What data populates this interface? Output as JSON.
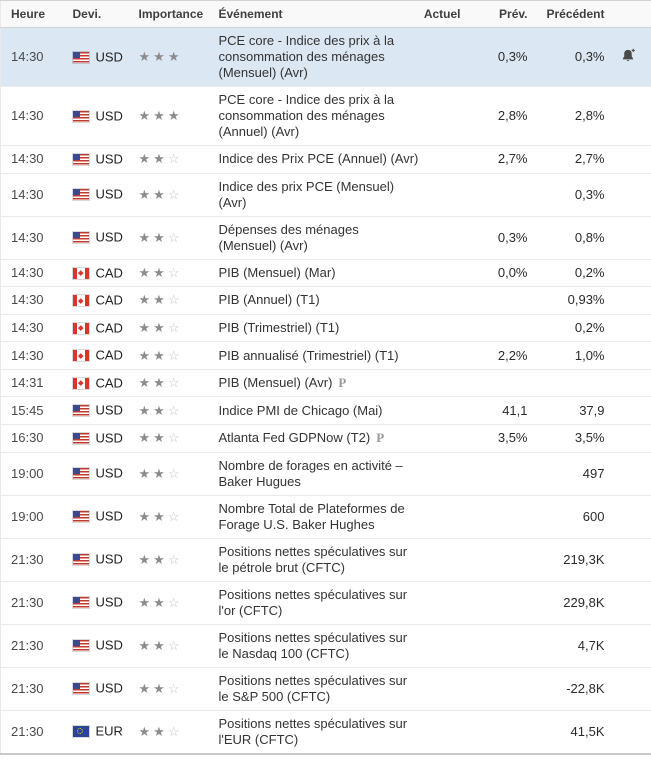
{
  "table": {
    "headers": {
      "time": "Heure",
      "currency": "Devi.",
      "importance": "Importance",
      "event": "Événement",
      "actual": "Actuel",
      "forecast": "Prév.",
      "previous": "Précédent"
    },
    "rows": [
      {
        "time": "14:30",
        "currency": "USD",
        "flag": "us",
        "importance": 3,
        "event": "PCE core - Indice des prix à la consommation des ménages (Mensuel) (Avr)",
        "actual": "",
        "forecast": "0,3%",
        "previous": "0,3%",
        "preliminary": false,
        "alert": true,
        "highlighted": true
      },
      {
        "time": "14:30",
        "currency": "USD",
        "flag": "us",
        "importance": 3,
        "event": "PCE core - Indice des prix à la consommation des ménages (Annuel) (Avr)",
        "actual": "",
        "forecast": "2,8%",
        "previous": "2,8%",
        "preliminary": false,
        "alert": false,
        "highlighted": false
      },
      {
        "time": "14:30",
        "currency": "USD",
        "flag": "us",
        "importance": 2,
        "event": "Indice des Prix PCE (Annuel) (Avr)",
        "actual": "",
        "forecast": "2,7%",
        "previous": "2,7%",
        "preliminary": false,
        "alert": false,
        "highlighted": false
      },
      {
        "time": "14:30",
        "currency": "USD",
        "flag": "us",
        "importance": 2,
        "event": "Indice des prix PCE (Mensuel) (Avr)",
        "actual": "",
        "forecast": "",
        "previous": "0,3%",
        "preliminary": false,
        "alert": false,
        "highlighted": false
      },
      {
        "time": "14:30",
        "currency": "USD",
        "flag": "us",
        "importance": 2,
        "event": "Dépenses des ménages (Mensuel) (Avr)",
        "actual": "",
        "forecast": "0,3%",
        "previous": "0,8%",
        "preliminary": false,
        "alert": false,
        "highlighted": false
      },
      {
        "time": "14:30",
        "currency": "CAD",
        "flag": "ca",
        "importance": 2,
        "event": "PIB (Mensuel) (Mar)",
        "actual": "",
        "forecast": "0,0%",
        "previous": "0,2%",
        "preliminary": false,
        "alert": false,
        "highlighted": false
      },
      {
        "time": "14:30",
        "currency": "CAD",
        "flag": "ca",
        "importance": 2,
        "event": "PIB (Annuel) (T1)",
        "actual": "",
        "forecast": "",
        "previous": "0,93%",
        "preliminary": false,
        "alert": false,
        "highlighted": false
      },
      {
        "time": "14:30",
        "currency": "CAD",
        "flag": "ca",
        "importance": 2,
        "event": "PIB (Trimestriel) (T1)",
        "actual": "",
        "forecast": "",
        "previous": "0,2%",
        "preliminary": false,
        "alert": false,
        "highlighted": false
      },
      {
        "time": "14:30",
        "currency": "CAD",
        "flag": "ca",
        "importance": 2,
        "event": "PIB annualisé (Trimestriel) (T1)",
        "actual": "",
        "forecast": "2,2%",
        "previous": "1,0%",
        "preliminary": false,
        "alert": false,
        "highlighted": false
      },
      {
        "time": "14:31",
        "currency": "CAD",
        "flag": "ca",
        "importance": 2,
        "event": "PIB (Mensuel) (Avr)",
        "actual": "",
        "forecast": "",
        "previous": "",
        "preliminary": true,
        "alert": false,
        "highlighted": false
      },
      {
        "time": "15:45",
        "currency": "USD",
        "flag": "us",
        "importance": 2,
        "event": "Indice PMI de Chicago (Mai)",
        "actual": "",
        "forecast": "41,1",
        "previous": "37,9",
        "preliminary": false,
        "alert": false,
        "highlighted": false
      },
      {
        "time": "16:30",
        "currency": "USD",
        "flag": "us",
        "importance": 2,
        "event": "Atlanta Fed GDPNow (T2)",
        "actual": "",
        "forecast": "3,5%",
        "previous": "3,5%",
        "preliminary": true,
        "alert": false,
        "highlighted": false
      },
      {
        "time": "19:00",
        "currency": "USD",
        "flag": "us",
        "importance": 2,
        "event": "Nombre de forages en activité – Baker Hugues",
        "actual": "",
        "forecast": "",
        "previous": "497",
        "preliminary": false,
        "alert": false,
        "highlighted": false
      },
      {
        "time": "19:00",
        "currency": "USD",
        "flag": "us",
        "importance": 2,
        "event": "Nombre Total de Plateformes de Forage U.S. Baker Hughes",
        "actual": "",
        "forecast": "",
        "previous": "600",
        "preliminary": false,
        "alert": false,
        "highlighted": false
      },
      {
        "time": "21:30",
        "currency": "USD",
        "flag": "us",
        "importance": 2,
        "event": "Positions nettes spéculatives sur le pétrole brut (CFTC)",
        "actual": "",
        "forecast": "",
        "previous": "219,3K",
        "preliminary": false,
        "alert": false,
        "highlighted": false
      },
      {
        "time": "21:30",
        "currency": "USD",
        "flag": "us",
        "importance": 2,
        "event": "Positions nettes spéculatives sur l'or (CFTC)",
        "actual": "",
        "forecast": "",
        "previous": "229,8K",
        "preliminary": false,
        "alert": false,
        "highlighted": false
      },
      {
        "time": "21:30",
        "currency": "USD",
        "flag": "us",
        "importance": 2,
        "event": "Positions nettes spéculatives sur le Nasdaq 100 (CFTC)",
        "actual": "",
        "forecast": "",
        "previous": "4,7K",
        "preliminary": false,
        "alert": false,
        "highlighted": false
      },
      {
        "time": "21:30",
        "currency": "USD",
        "flag": "us",
        "importance": 2,
        "event": "Positions nettes spéculatives sur le S&P 500 (CFTC)",
        "actual": "",
        "forecast": "",
        "previous": "-22,8K",
        "preliminary": false,
        "alert": false,
        "highlighted": false
      },
      {
        "time": "21:30",
        "currency": "EUR",
        "flag": "eu",
        "importance": 2,
        "event": "Positions nettes spéculatives sur l'EUR (CFTC)",
        "actual": "",
        "forecast": "",
        "previous": "41,5K",
        "preliminary": false,
        "alert": false,
        "highlighted": false
      }
    ]
  },
  "icons": {
    "star_filled": "★",
    "star_empty": "☆",
    "preliminary_mark": "P",
    "alert_bell": "bell-plus"
  },
  "colors": {
    "highlight_row": "#dbe7f3",
    "star_filled": "#8c8c8c",
    "star_empty": "#c4c4c4",
    "header_background": "#f9f9f9",
    "row_border": "#e9e9e9"
  }
}
